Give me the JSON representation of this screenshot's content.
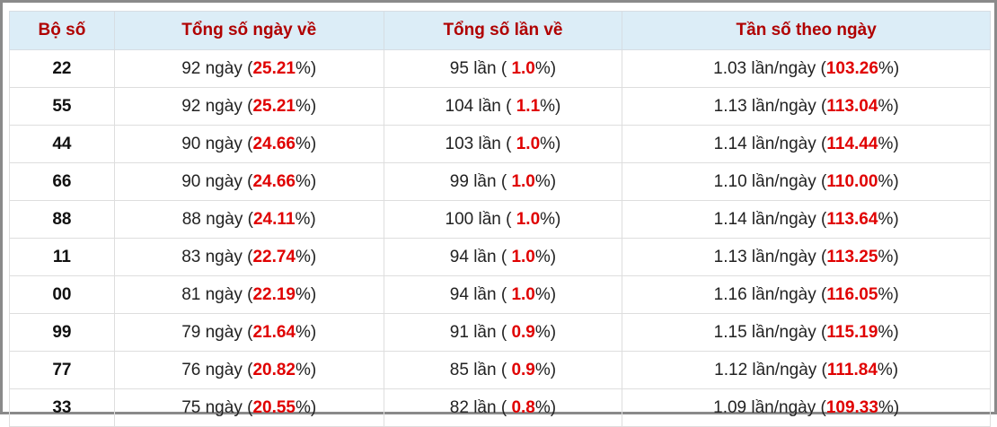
{
  "table": {
    "headers": [
      "Bộ số",
      "Tổng số ngày về",
      "Tổng số lần về",
      "Tần số theo ngày"
    ],
    "rows": [
      [
        "22",
        [
          "92 ngày (",
          "25.21",
          "%)"
        ],
        [
          "95 lần ( ",
          "1.0",
          "%)"
        ],
        [
          "1.03 lần/ngày (",
          "103.26",
          "%)"
        ]
      ],
      [
        "55",
        [
          "92 ngày (",
          "25.21",
          "%)"
        ],
        [
          "104 lần ( ",
          "1.1",
          "%)"
        ],
        [
          "1.13 lần/ngày (",
          "113.04",
          "%)"
        ]
      ],
      [
        "44",
        [
          "90 ngày (",
          "24.66",
          "%)"
        ],
        [
          "103 lần ( ",
          "1.0",
          "%)"
        ],
        [
          "1.14 lần/ngày (",
          "114.44",
          "%)"
        ]
      ],
      [
        "66",
        [
          "90 ngày (",
          "24.66",
          "%)"
        ],
        [
          "99 lần ( ",
          "1.0",
          "%)"
        ],
        [
          "1.10 lần/ngày (",
          "110.00",
          "%)"
        ]
      ],
      [
        "88",
        [
          "88 ngày (",
          "24.11",
          "%)"
        ],
        [
          "100 lần ( ",
          "1.0",
          "%)"
        ],
        [
          "1.14 lần/ngày (",
          "113.64",
          "%)"
        ]
      ],
      [
        "11",
        [
          "83 ngày (",
          "22.74",
          "%)"
        ],
        [
          "94 lần ( ",
          "1.0",
          "%)"
        ],
        [
          "1.13 lần/ngày (",
          "113.25",
          "%)"
        ]
      ],
      [
        "00",
        [
          "81 ngày (",
          "22.19",
          "%)"
        ],
        [
          "94 lần ( ",
          "1.0",
          "%)"
        ],
        [
          "1.16 lần/ngày (",
          "116.05",
          "%)"
        ]
      ],
      [
        "99",
        [
          "79 ngày (",
          "21.64",
          "%)"
        ],
        [
          "91 lần ( ",
          "0.9",
          "%)"
        ],
        [
          "1.15 lần/ngày (",
          "115.19",
          "%)"
        ]
      ],
      [
        "77",
        [
          "76 ngày (",
          "20.82",
          "%)"
        ],
        [
          "85 lần ( ",
          "0.9",
          "%)"
        ],
        [
          "1.12 lần/ngày (",
          "111.84",
          "%)"
        ]
      ],
      [
        "33",
        [
          "75 ngày (",
          "20.55",
          "%)"
        ],
        [
          "82 lần ( ",
          "0.8",
          "%)"
        ],
        [
          "1.09 lần/ngày (",
          "109.33",
          "%)"
        ]
      ]
    ]
  }
}
